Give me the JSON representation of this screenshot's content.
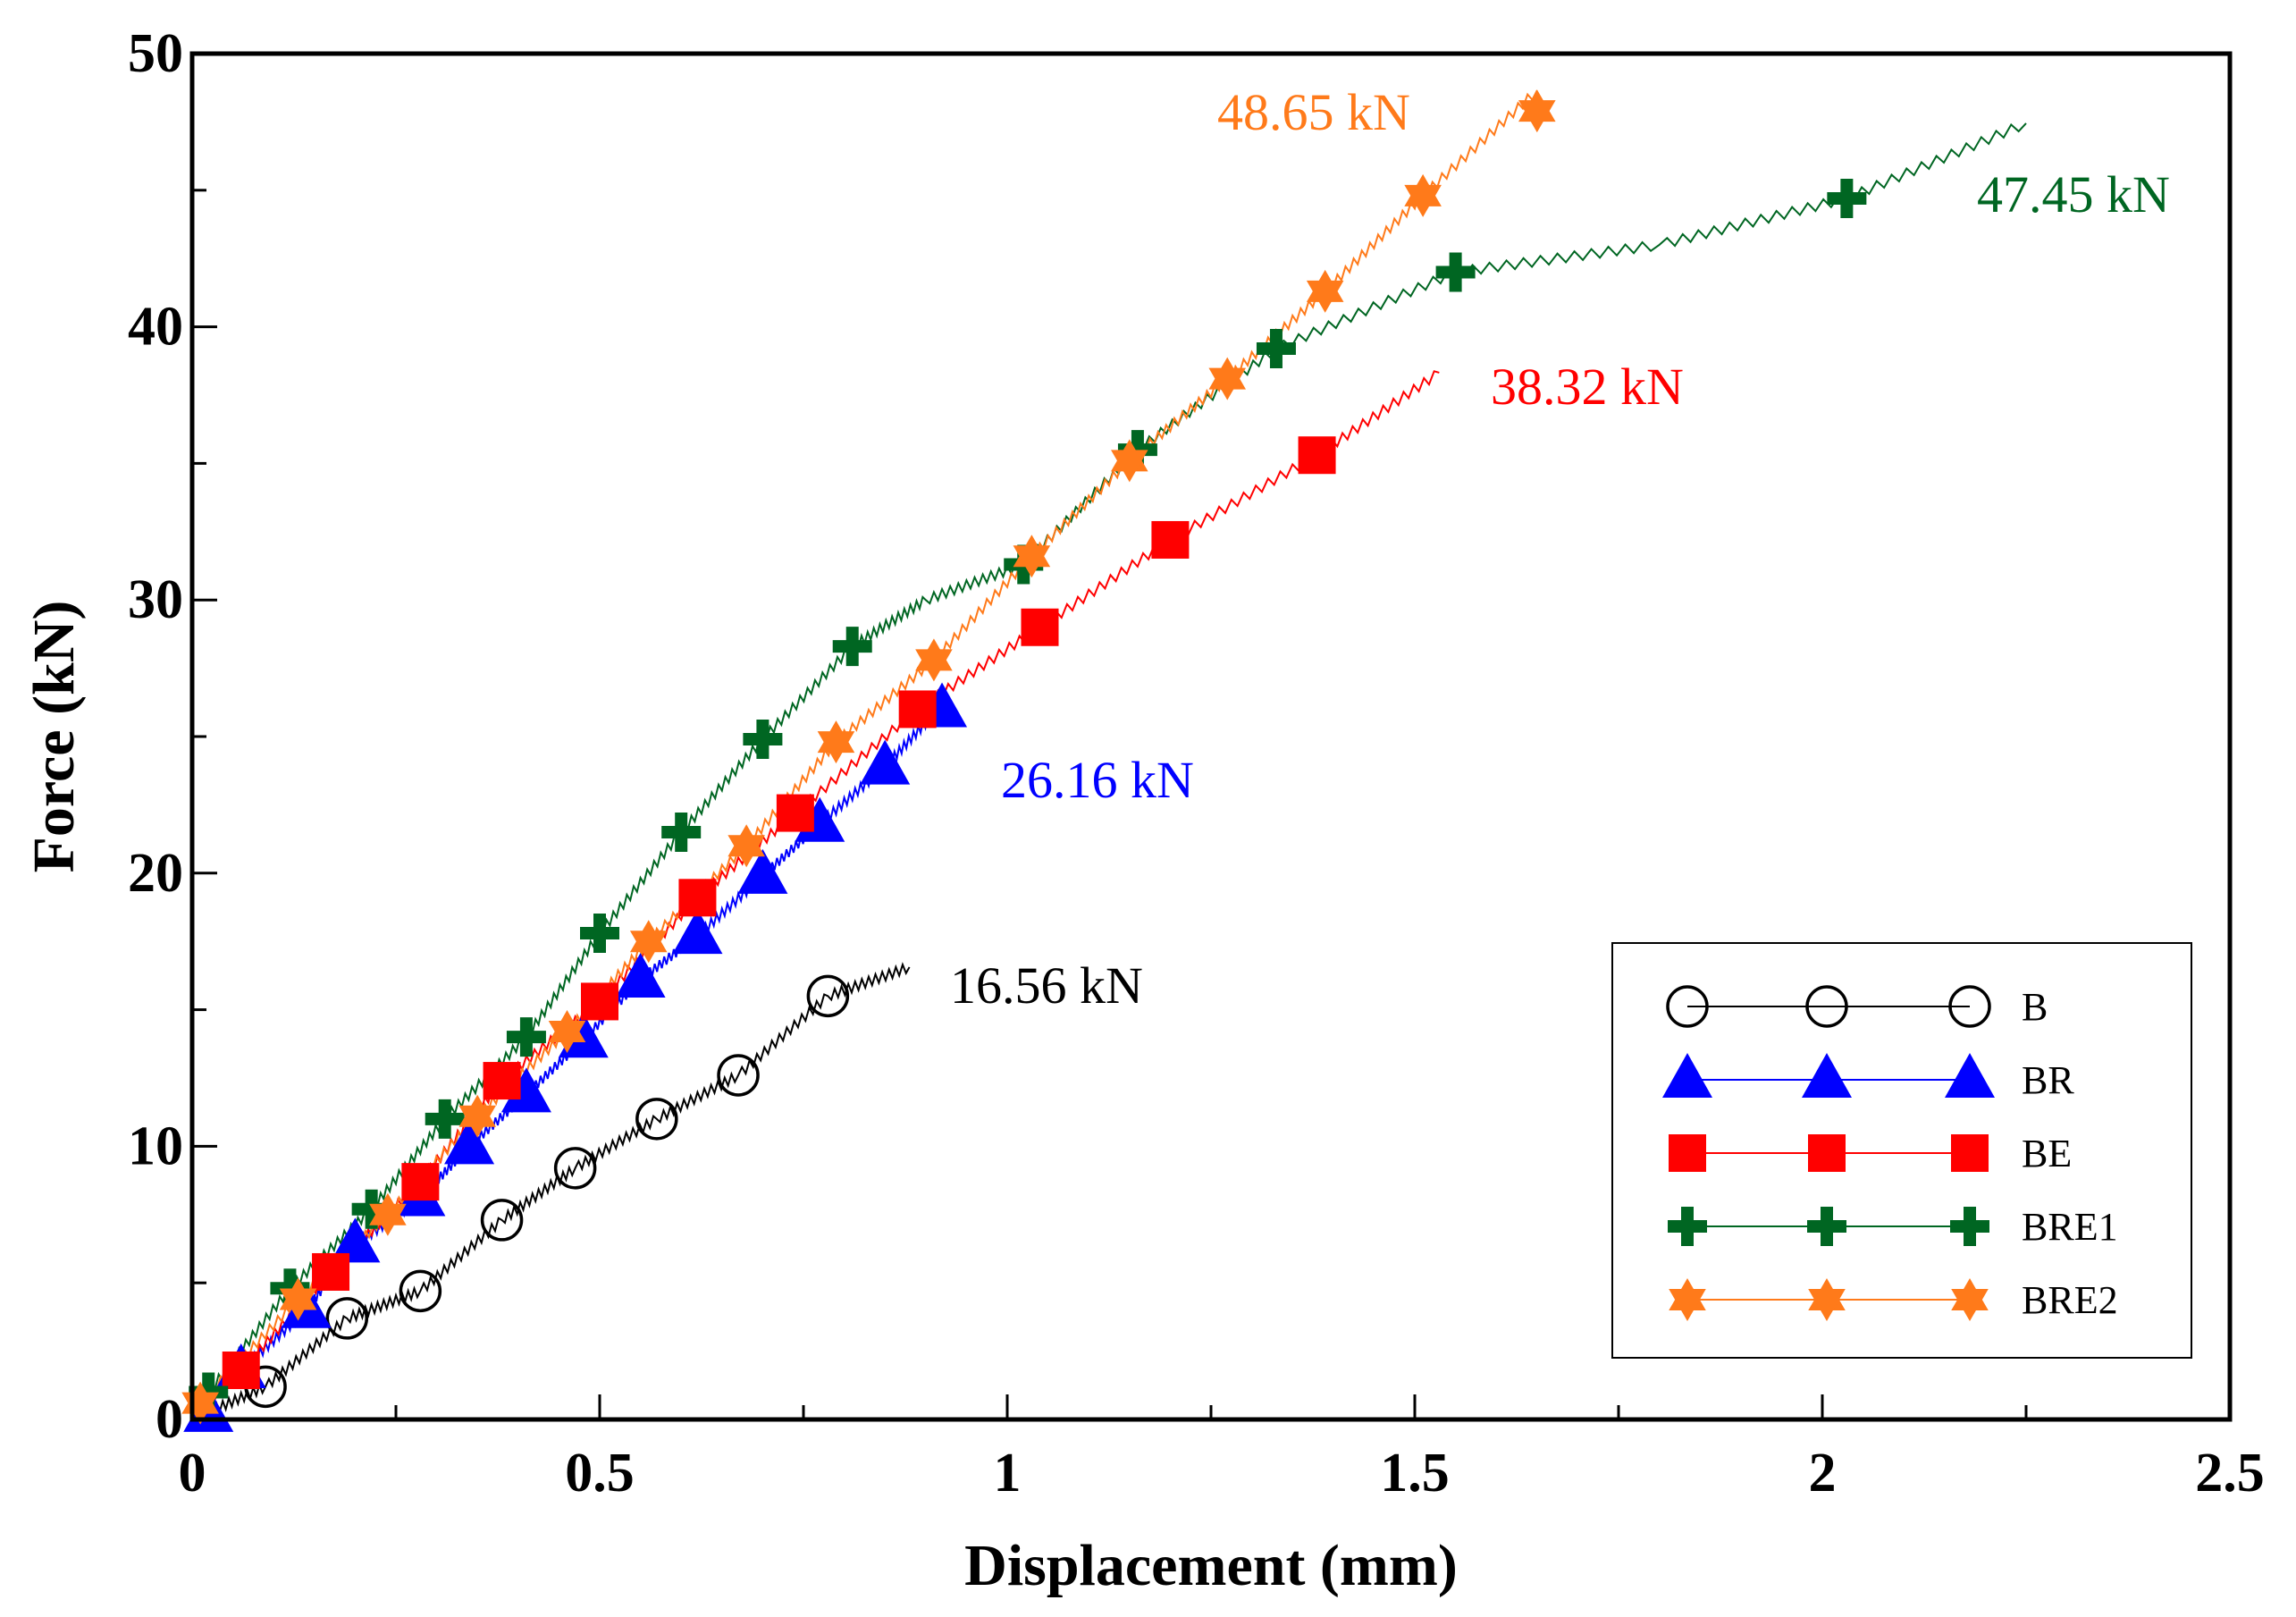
{
  "chart_data": {
    "type": "line",
    "title": "",
    "xlabel": "Displacement (mm)",
    "ylabel": "Force (kN)",
    "xlim": [
      0,
      2.5
    ],
    "ylim": [
      0,
      50
    ],
    "x_ticks": [
      0,
      0.5,
      1,
      1.5,
      2,
      2.5
    ],
    "x_tick_labels": [
      "0",
      "0.5",
      "1",
      "1.5",
      "2",
      "2.5"
    ],
    "y_ticks": [
      0,
      10,
      20,
      30,
      40,
      50
    ],
    "y_tick_labels": [
      "0",
      "10",
      "20",
      "30",
      "40",
      "50"
    ],
    "grid": false,
    "legend_position": "bottom-right",
    "series": [
      {
        "name": "B",
        "color": "#000000",
        "marker": "circle",
        "peak_label": "16.56 kN",
        "x": [
          0,
          0.09,
          0.19,
          0.28,
          0.38,
          0.47,
          0.57,
          0.67,
          0.78,
          0.88
        ],
        "y": [
          0,
          1.2,
          3.7,
          4.7,
          7.3,
          9.2,
          11.0,
          12.6,
          15.5,
          16.56
        ],
        "markers_x": [
          0.09,
          0.19,
          0.28,
          0.38,
          0.47,
          0.57,
          0.67,
          0.78
        ],
        "markers_y": [
          1.2,
          3.7,
          4.7,
          7.3,
          9.2,
          11.0,
          12.6,
          15.5
        ]
      },
      {
        "name": "BR",
        "color": "#0000ff",
        "marker": "triangle",
        "peak_label": "26.16 kN",
        "x": [
          0,
          0.06,
          0.14,
          0.2,
          0.28,
          0.34,
          0.41,
          0.48,
          0.55,
          0.62,
          0.7,
          0.77,
          0.85,
          0.92
        ],
        "y": [
          0,
          1.8,
          4.0,
          6.4,
          8.1,
          10.0,
          11.9,
          13.9,
          16.1,
          17.7,
          19.9,
          21.8,
          23.9,
          26.16
        ],
        "markers_x": [
          0.02,
          0.06,
          0.14,
          0.2,
          0.28,
          0.34,
          0.41,
          0.48,
          0.55,
          0.62,
          0.7,
          0.77,
          0.85,
          0.92
        ],
        "markers_y": [
          0.2,
          1.8,
          4.0,
          6.4,
          8.1,
          10.0,
          11.9,
          13.9,
          16.1,
          17.7,
          19.9,
          21.8,
          23.9,
          26.0
        ]
      },
      {
        "name": "BE",
        "color": "#ff0000",
        "marker": "square",
        "peak_label": "38.32 kN",
        "x": [
          0,
          0.06,
          0.17,
          0.28,
          0.38,
          0.5,
          0.62,
          0.74,
          0.89,
          1.04,
          1.2,
          1.38,
          1.53
        ],
        "y": [
          0,
          1.8,
          5.4,
          8.7,
          12.4,
          15.3,
          19.1,
          22.2,
          26.0,
          29.0,
          32.2,
          35.3,
          38.32
        ],
        "markers_x": [
          0.06,
          0.17,
          0.28,
          0.38,
          0.5,
          0.62,
          0.74,
          0.89,
          1.04,
          1.2,
          1.38
        ],
        "markers_y": [
          1.8,
          5.4,
          8.7,
          12.4,
          15.3,
          19.1,
          22.2,
          26.0,
          29.0,
          32.2,
          35.3
        ]
      },
      {
        "name": "BRE1",
        "color": "#006622",
        "marker": "plus",
        "peak_label": "47.45 kN",
        "x": [
          0,
          0.02,
          0.12,
          0.22,
          0.31,
          0.41,
          0.5,
          0.6,
          0.7,
          0.81,
          0.9,
          1.02,
          1.16,
          1.33,
          1.55,
          1.8,
          2.03,
          2.25
        ],
        "y": [
          0,
          1.0,
          4.8,
          7.7,
          11.0,
          14.0,
          17.8,
          21.5,
          24.9,
          28.3,
          30.0,
          31.3,
          35.5,
          39.2,
          42.0,
          43.0,
          44.7,
          47.45
        ],
        "markers_x": [
          0.02,
          0.12,
          0.22,
          0.31,
          0.41,
          0.5,
          0.6,
          0.7,
          0.81,
          1.02,
          1.16,
          1.33,
          1.55,
          2.03
        ],
        "markers_y": [
          1.0,
          4.8,
          7.7,
          11.0,
          14.0,
          17.8,
          21.5,
          24.9,
          28.3,
          31.3,
          35.5,
          39.2,
          42.0,
          44.7
        ]
      },
      {
        "name": "BRE2",
        "color": "#ff7a1a",
        "marker": "star",
        "peak_label": "48.65 kN",
        "x": [
          0,
          0.01,
          0.13,
          0.24,
          0.35,
          0.46,
          0.56,
          0.68,
          0.79,
          0.91,
          1.03,
          1.15,
          1.27,
          1.39,
          1.51,
          1.65
        ],
        "y": [
          0,
          0.6,
          4.4,
          7.5,
          11.1,
          14.2,
          17.5,
          21.0,
          24.8,
          27.8,
          31.6,
          35.1,
          38.1,
          41.3,
          44.8,
          48.65
        ],
        "markers_x": [
          0.01,
          0.13,
          0.24,
          0.35,
          0.46,
          0.56,
          0.68,
          0.79,
          0.91,
          1.03,
          1.15,
          1.27,
          1.39,
          1.51,
          1.65
        ],
        "markers_y": [
          0.6,
          4.4,
          7.5,
          11.1,
          14.2,
          17.5,
          21.0,
          24.8,
          27.8,
          31.6,
          35.1,
          38.1,
          41.3,
          44.8,
          47.9
        ]
      }
    ]
  }
}
